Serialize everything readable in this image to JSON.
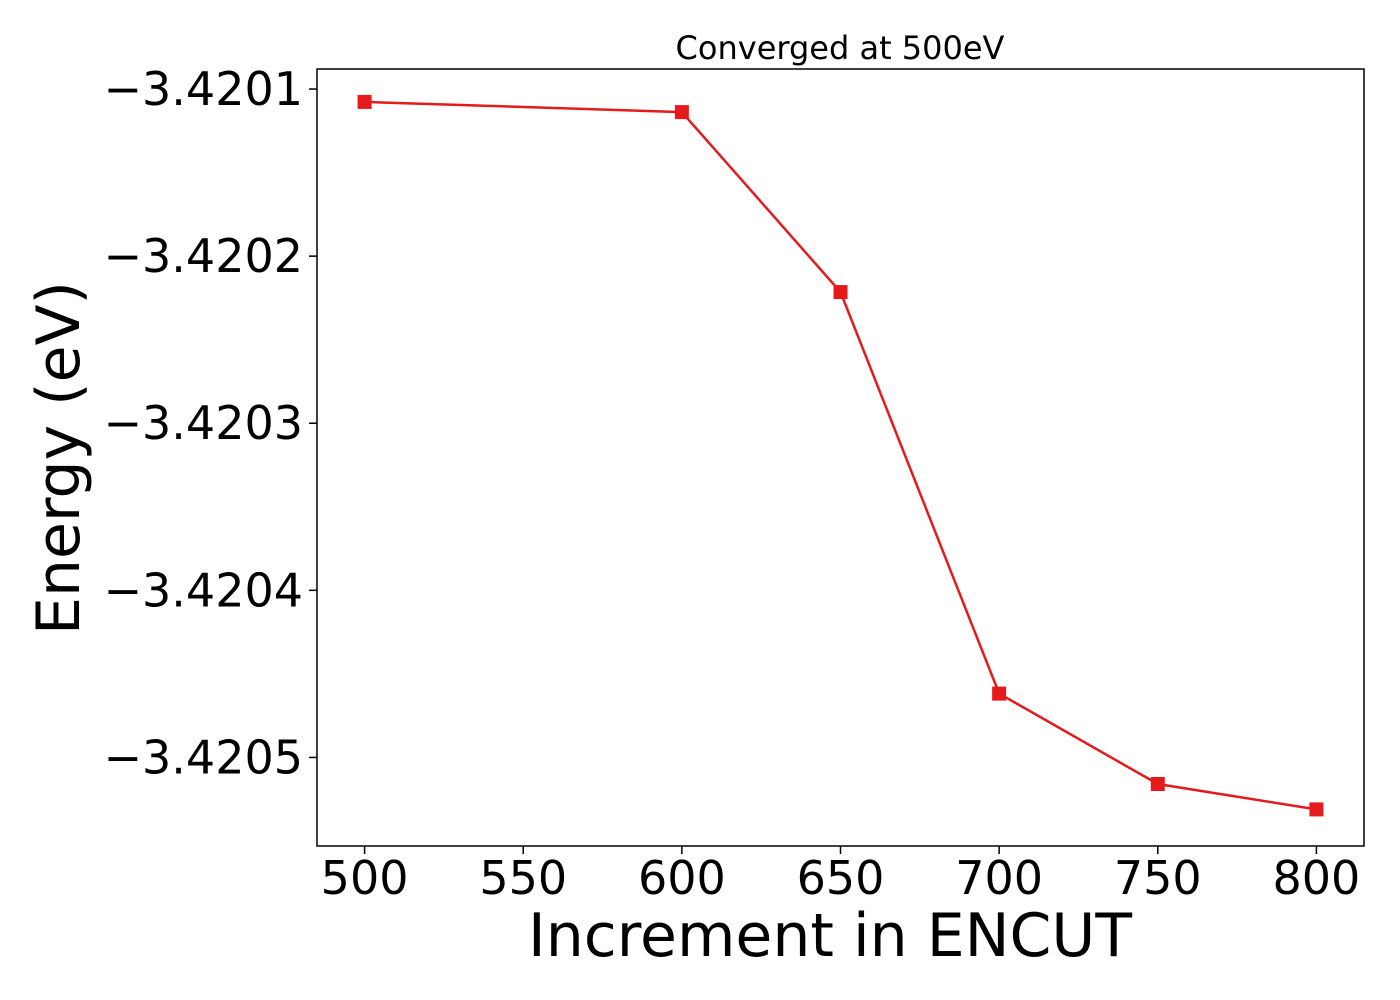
{
  "chart_data": {
    "type": "line",
    "title": "Converged at 500eV",
    "xlabel": "Increment in ENCUT",
    "ylabel": "Energy (eV)",
    "xlim": [
      485,
      815
    ],
    "ylim": [
      -3.420553,
      -3.420088
    ],
    "xticks": [
      500,
      550,
      600,
      650,
      700,
      750,
      800
    ],
    "xtick_labels": [
      "500",
      "550",
      "600",
      "650",
      "700",
      "750",
      "800"
    ],
    "yticks": [
      -3.4201,
      -3.4202,
      -3.4203,
      -3.4204,
      -3.4205
    ],
    "ytick_labels": [
      "−3.4201",
      "−3.4202",
      "−3.4203",
      "−3.4204",
      "−3.4205"
    ],
    "grid": false,
    "series": [
      {
        "color": "#e41a1c",
        "marker": "square",
        "x": [
          500,
          600,
          650,
          700,
          750,
          800
        ],
        "y": [
          -3.4201077,
          -3.4201138,
          -3.4202215,
          -3.4204618,
          -3.4205159,
          -3.4205311
        ]
      }
    ]
  }
}
